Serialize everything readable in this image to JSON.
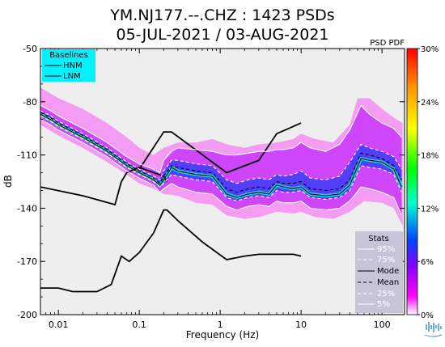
{
  "chart_data": {
    "type": "psd_pdf",
    "title": "YM.NJ177.--.CHZ : 1423 PSDs",
    "subtitle": "05-JUL-2021 / 03-AUG-2021",
    "xlabel": "Frequency (Hz)",
    "ylabel": "dB",
    "x_scale": "log",
    "xlim": [
      0.006,
      190
    ],
    "ylim": [
      -200,
      -50
    ],
    "x_ticks": [
      {
        "value": 0.01,
        "label": "0.01"
      },
      {
        "value": 0.1,
        "label": "0.1"
      },
      {
        "value": 1,
        "label": "1"
      },
      {
        "value": 10,
        "label": "10"
      },
      {
        "value": 100,
        "label": "100"
      }
    ],
    "y_ticks": [
      {
        "value": -50,
        "label": "-50"
      },
      {
        "value": -80,
        "label": "-80"
      },
      {
        "value": -110,
        "label": "-110"
      },
      {
        "value": -140,
        "label": "-140"
      },
      {
        "value": -170,
        "label": "-170"
      },
      {
        "value": -200,
        "label": "-200"
      }
    ],
    "colorbar": {
      "title": "PSD PDF",
      "ticks": [
        "30%",
        "24%",
        "18%",
        "12%",
        "6%",
        "0%"
      ],
      "colors": [
        "#ff0000",
        "#ff9900",
        "#ffff00",
        "#00ff00",
        "#00ffcc",
        "#0044ff",
        "#8800ff",
        "#ff00ff",
        "#ffffff"
      ]
    },
    "baselines": {
      "title": "Baselines",
      "entries": [
        "HNM",
        "LNM"
      ],
      "HNM": [
        [
          0.1,
          -118
        ],
        [
          0.2,
          -97
        ],
        [
          0.25,
          -97
        ],
        [
          1.2,
          -120
        ],
        [
          3,
          -113
        ],
        [
          5,
          -98
        ],
        [
          10,
          -92
        ]
      ],
      "LNM": [
        [
          0.006,
          -185
        ],
        [
          0.01,
          -185
        ],
        [
          0.015,
          -187
        ],
        [
          0.03,
          -187
        ],
        [
          0.045,
          -183
        ],
        [
          0.06,
          -167
        ],
        [
          0.075,
          -170
        ],
        [
          0.1,
          -165
        ],
        [
          0.15,
          -154
        ],
        [
          0.2,
          -141
        ],
        [
          0.22,
          -141
        ],
        [
          0.3,
          -147
        ],
        [
          0.6,
          -159
        ],
        [
          1.2,
          -169
        ],
        [
          2,
          -167
        ],
        [
          3,
          -166
        ],
        [
          5,
          -166
        ],
        [
          8,
          -166
        ],
        [
          10,
          -167
        ]
      ]
    },
    "low_noise_reference": [
      [
        0.006,
        -128
      ],
      [
        0.02,
        -133
      ],
      [
        0.05,
        -138
      ],
      [
        0.06,
        -125
      ],
      [
        0.07,
        -120
      ],
      [
        0.1,
        -117
      ],
      [
        0.2,
        -122
      ],
      [
        0.22,
        -125
      ]
    ],
    "stats": {
      "title": "Stats",
      "entries": [
        "95%",
        "75%",
        "Mode",
        "Mean",
        "25%",
        "5%"
      ]
    },
    "series": [
      {
        "name": "Mode",
        "values": [
          [
            0.006,
            -87
          ],
          [
            0.008,
            -90
          ],
          [
            0.01,
            -93
          ],
          [
            0.02,
            -100
          ],
          [
            0.04,
            -108
          ],
          [
            0.07,
            -116
          ],
          [
            0.1,
            -120
          ],
          [
            0.15,
            -124
          ],
          [
            0.18,
            -127
          ],
          [
            0.2,
            -124
          ],
          [
            0.25,
            -117
          ],
          [
            0.3,
            -119
          ],
          [
            0.5,
            -121
          ],
          [
            0.8,
            -122
          ],
          [
            1.2,
            -132
          ],
          [
            1.6,
            -134
          ],
          [
            2.2,
            -132
          ],
          [
            3,
            -131
          ],
          [
            4,
            -132
          ],
          [
            5,
            -127
          ],
          [
            6,
            -128
          ],
          [
            8,
            -129
          ],
          [
            10,
            -128
          ],
          [
            13,
            -132
          ],
          [
            20,
            -133
          ],
          [
            30,
            -132
          ],
          [
            40,
            -127
          ],
          [
            55,
            -112
          ],
          [
            70,
            -113
          ],
          [
            100,
            -114
          ],
          [
            140,
            -118
          ],
          [
            175,
            -128
          ]
        ]
      },
      {
        "name": "Mean",
        "values": [
          [
            0.006,
            -86
          ],
          [
            0.008,
            -89
          ],
          [
            0.01,
            -92
          ],
          [
            0.02,
            -99
          ],
          [
            0.04,
            -107
          ],
          [
            0.07,
            -115
          ],
          [
            0.1,
            -119
          ],
          [
            0.15,
            -123
          ],
          [
            0.18,
            -126
          ],
          [
            0.2,
            -122
          ],
          [
            0.25,
            -116
          ],
          [
            0.3,
            -117
          ],
          [
            0.5,
            -119
          ],
          [
            0.8,
            -120
          ],
          [
            1.2,
            -129
          ],
          [
            1.6,
            -131
          ],
          [
            2.2,
            -129
          ],
          [
            3,
            -128
          ],
          [
            4,
            -129
          ],
          [
            5,
            -125
          ],
          [
            6,
            -126
          ],
          [
            8,
            -126
          ],
          [
            10,
            -125
          ],
          [
            13,
            -129
          ],
          [
            20,
            -130
          ],
          [
            30,
            -129
          ],
          [
            40,
            -124
          ],
          [
            55,
            -109
          ],
          [
            70,
            -110
          ],
          [
            100,
            -112
          ],
          [
            140,
            -116
          ],
          [
            175,
            -124
          ]
        ]
      },
      {
        "name": "95%",
        "values": [
          [
            0.006,
            -82
          ],
          [
            0.008,
            -85
          ],
          [
            0.01,
            -88
          ],
          [
            0.02,
            -95
          ],
          [
            0.04,
            -103
          ],
          [
            0.07,
            -111
          ],
          [
            0.1,
            -115
          ],
          [
            0.15,
            -118
          ],
          [
            0.18,
            -120
          ],
          [
            0.2,
            -113
          ],
          [
            0.25,
            -108
          ],
          [
            0.3,
            -106
          ],
          [
            0.5,
            -107
          ],
          [
            0.8,
            -108
          ],
          [
            1.2,
            -110
          ],
          [
            1.6,
            -110
          ],
          [
            2.2,
            -109
          ],
          [
            3,
            -108
          ],
          [
            4,
            -108
          ],
          [
            5,
            -107
          ],
          [
            6,
            -107
          ],
          [
            8,
            -106
          ],
          [
            10,
            -103
          ],
          [
            13,
            -106
          ],
          [
            20,
            -108
          ],
          [
            30,
            -104
          ],
          [
            40,
            -96
          ],
          [
            55,
            -82
          ],
          [
            70,
            -87
          ],
          [
            100,
            -92
          ],
          [
            140,
            -95
          ],
          [
            175,
            -100
          ]
        ]
      },
      {
        "name": "75%",
        "values": [
          [
            0.006,
            -85
          ],
          [
            0.008,
            -88
          ],
          [
            0.01,
            -91
          ],
          [
            0.02,
            -98
          ],
          [
            0.04,
            -106
          ],
          [
            0.07,
            -114
          ],
          [
            0.1,
            -118
          ],
          [
            0.15,
            -122
          ],
          [
            0.18,
            -124
          ],
          [
            0.2,
            -119
          ],
          [
            0.25,
            -113
          ],
          [
            0.3,
            -113
          ],
          [
            0.5,
            -115
          ],
          [
            0.8,
            -116
          ],
          [
            1.2,
            -124
          ],
          [
            1.6,
            -126
          ],
          [
            2.2,
            -124
          ],
          [
            3,
            -123
          ],
          [
            4,
            -124
          ],
          [
            5,
            -121
          ],
          [
            6,
            -122
          ],
          [
            8,
            -121
          ],
          [
            10,
            -119
          ],
          [
            13,
            -123
          ],
          [
            20,
            -124
          ],
          [
            30,
            -122
          ],
          [
            40,
            -114
          ],
          [
            55,
            -104
          ],
          [
            70,
            -106
          ],
          [
            100,
            -108
          ],
          [
            140,
            -111
          ],
          [
            175,
            -118
          ]
        ]
      },
      {
        "name": "25%",
        "values": [
          [
            0.006,
            -88
          ],
          [
            0.008,
            -91
          ],
          [
            0.01,
            -94
          ],
          [
            0.02,
            -101
          ],
          [
            0.04,
            -109
          ],
          [
            0.07,
            -117
          ],
          [
            0.1,
            -121
          ],
          [
            0.15,
            -125
          ],
          [
            0.18,
            -128
          ],
          [
            0.2,
            -126
          ],
          [
            0.25,
            -121
          ],
          [
            0.3,
            -122
          ],
          [
            0.5,
            -124
          ],
          [
            0.8,
            -125
          ],
          [
            1.2,
            -134
          ],
          [
            1.6,
            -136
          ],
          [
            2.2,
            -134
          ],
          [
            3,
            -133
          ],
          [
            4,
            -134
          ],
          [
            5,
            -130
          ],
          [
            6,
            -131
          ],
          [
            8,
            -131
          ],
          [
            10,
            -130
          ],
          [
            13,
            -134
          ],
          [
            20,
            -135
          ],
          [
            30,
            -134
          ],
          [
            40,
            -130
          ],
          [
            55,
            -116
          ],
          [
            70,
            -117
          ],
          [
            100,
            -118
          ],
          [
            140,
            -121
          ],
          [
            175,
            -131
          ]
        ]
      },
      {
        "name": "5%",
        "values": [
          [
            0.006,
            -90
          ],
          [
            0.008,
            -93
          ],
          [
            0.01,
            -96
          ],
          [
            0.02,
            -103
          ],
          [
            0.04,
            -111
          ],
          [
            0.07,
            -119
          ],
          [
            0.1,
            -123
          ],
          [
            0.15,
            -127
          ],
          [
            0.18,
            -131
          ],
          [
            0.2,
            -129
          ],
          [
            0.25,
            -126
          ],
          [
            0.3,
            -128
          ],
          [
            0.5,
            -131
          ],
          [
            0.8,
            -132
          ],
          [
            1.2,
            -139
          ],
          [
            1.6,
            -141
          ],
          [
            2.2,
            -139
          ],
          [
            3,
            -138
          ],
          [
            4,
            -139
          ],
          [
            5,
            -136
          ],
          [
            6,
            -137
          ],
          [
            8,
            -137
          ],
          [
            10,
            -136
          ],
          [
            13,
            -140
          ],
          [
            20,
            -141
          ],
          [
            30,
            -140
          ],
          [
            40,
            -136
          ],
          [
            55,
            -128
          ],
          [
            70,
            -129
          ],
          [
            100,
            -131
          ],
          [
            140,
            -134
          ],
          [
            175,
            -144
          ]
        ]
      }
    ],
    "pdf_band": {
      "upper": [
        [
          0.006,
          -72
        ],
        [
          0.01,
          -78
        ],
        [
          0.02,
          -84
        ],
        [
          0.04,
          -92
        ],
        [
          0.07,
          -100
        ],
        [
          0.1,
          -106
        ],
        [
          0.15,
          -110
        ],
        [
          0.2,
          -106
        ],
        [
          0.3,
          -103
        ],
        [
          0.5,
          -103
        ],
        [
          0.8,
          -101
        ],
        [
          1.2,
          -104
        ],
        [
          2,
          -106
        ],
        [
          3,
          -104
        ],
        [
          5,
          -103
        ],
        [
          8,
          -101
        ],
        [
          10,
          -98
        ],
        [
          15,
          -101
        ],
        [
          25,
          -103
        ],
        [
          40,
          -93
        ],
        [
          50,
          -78
        ],
        [
          70,
          -78
        ],
        [
          100,
          -84
        ],
        [
          140,
          -89
        ],
        [
          180,
          -92
        ]
      ],
      "lower": [
        [
          0.006,
          -93
        ],
        [
          0.01,
          -99
        ],
        [
          0.02,
          -106
        ],
        [
          0.04,
          -114
        ],
        [
          0.07,
          -121
        ],
        [
          0.1,
          -126
        ],
        [
          0.15,
          -129
        ],
        [
          0.2,
          -132
        ],
        [
          0.3,
          -133
        ],
        [
          0.5,
          -137
        ],
        [
          0.8,
          -138
        ],
        [
          1.2,
          -144
        ],
        [
          2,
          -146
        ],
        [
          3,
          -145
        ],
        [
          5,
          -142
        ],
        [
          8,
          -143
        ],
        [
          10,
          -142
        ],
        [
          15,
          -145
        ],
        [
          25,
          -146
        ],
        [
          40,
          -142
        ],
        [
          60,
          -136
        ],
        [
          100,
          -137
        ],
        [
          140,
          -140
        ],
        [
          180,
          -150
        ]
      ]
    },
    "grid": false
  }
}
